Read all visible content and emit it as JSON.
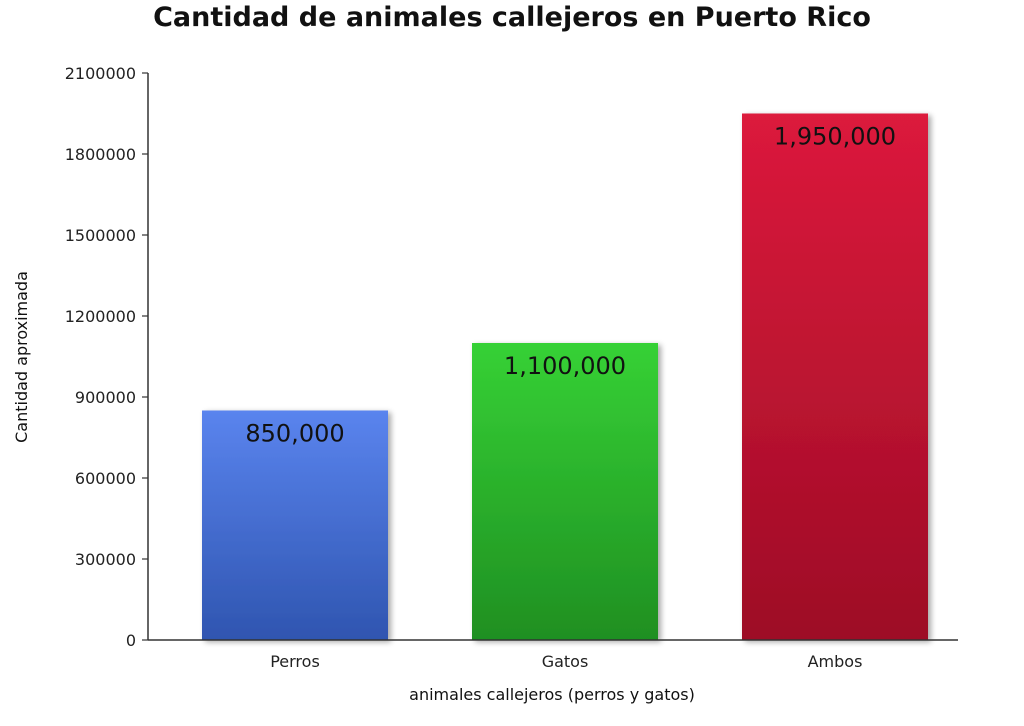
{
  "chart_data": {
    "type": "bar",
    "title": "Cantidad de animales callejeros en Puerto Rico",
    "xlabel": "animales callejeros (perros y gatos)",
    "ylabel": "Cantidad aproximada",
    "categories": [
      "Perros",
      "Gatos",
      "Ambos"
    ],
    "values": [
      850000,
      1100000,
      1950000
    ],
    "data_labels": [
      "850,000",
      "1,100,000",
      "1,950,000"
    ],
    "ylim": [
      0,
      2100000
    ],
    "yticks": [
      0,
      300000,
      600000,
      900000,
      1200000,
      1500000,
      1800000,
      2100000
    ],
    "ytick_labels": [
      "0",
      "300000",
      "600000",
      "900000",
      "1200000",
      "1500000",
      "1800000",
      "2100000"
    ],
    "grid": false,
    "legend": "none",
    "colors": [
      {
        "top": "#5a84ee",
        "bottom": "#2f55b0"
      },
      {
        "top": "#36d135",
        "bottom": "#1f8f22"
      },
      {
        "top": "#dc1a3c",
        "bottom": "#9d0c26"
      }
    ]
  }
}
